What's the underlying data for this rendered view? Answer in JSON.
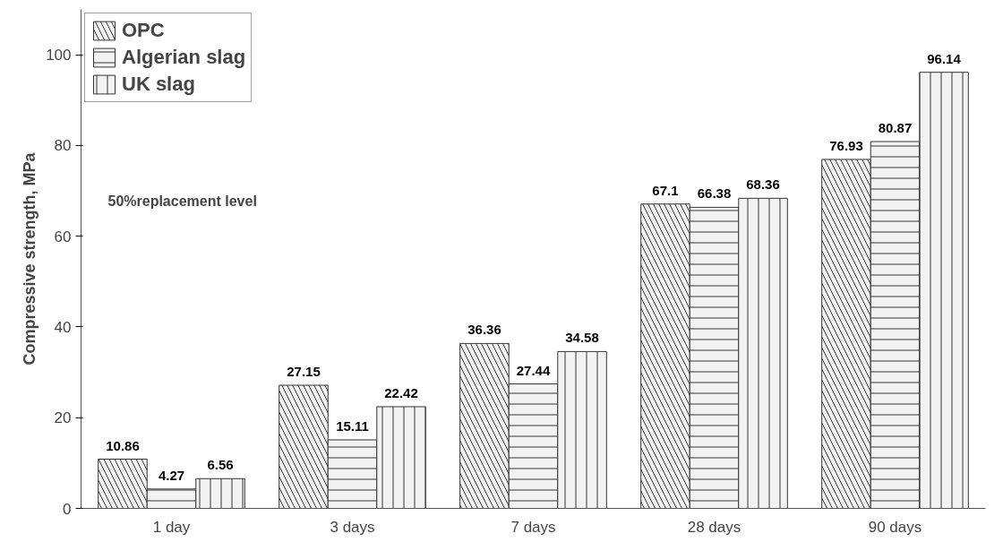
{
  "chart_data": {
    "type": "bar",
    "ylabel": "Compressive strength, MPa",
    "categories": [
      "1 day",
      "3 days",
      "7 days",
      "28 days",
      "90 days"
    ],
    "series": [
      {
        "name": "OPC",
        "color": "#f2f2f2",
        "values": [
          10.86,
          27.15,
          36.36,
          67.1,
          76.93
        ]
      },
      {
        "name": "Algerian slag",
        "color": "#f2f2f2",
        "values": [
          4.27,
          15.11,
          27.44,
          66.38,
          80.87
        ]
      },
      {
        "name": "UK slag",
        "color": "#f2f2f2",
        "values": [
          6.56,
          22.42,
          34.58,
          68.36,
          96.14
        ]
      }
    ],
    "ylim": [
      0,
      110
    ],
    "yticks": [
      0,
      20,
      40,
      60,
      80,
      100
    ],
    "grid": false,
    "legend": "top left",
    "data_labels": true,
    "annotations": [
      "50%replacement level"
    ]
  }
}
